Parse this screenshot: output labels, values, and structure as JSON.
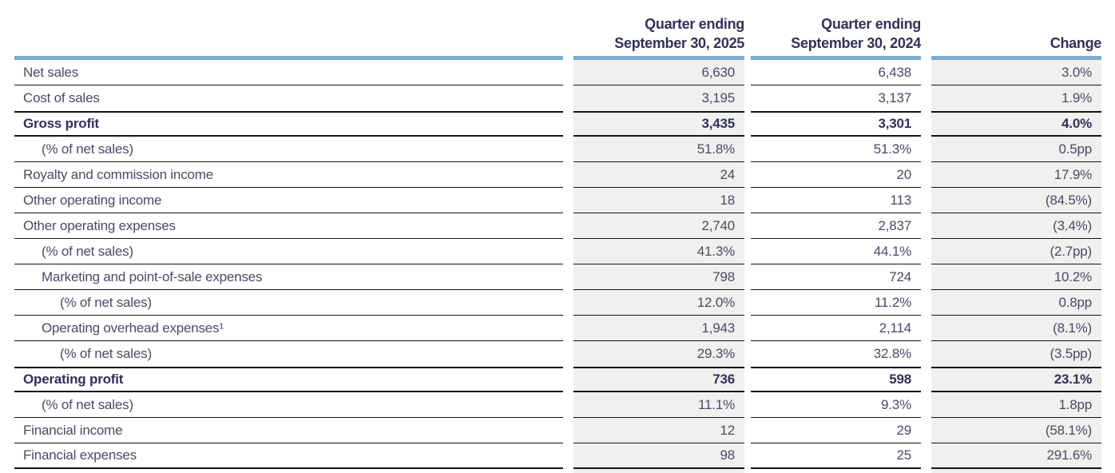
{
  "header": {
    "col_2025_line1": "Quarter ending",
    "col_2025_line2": "September 30, 2025",
    "col_2024_line1": "Quarter ending",
    "col_2024_line2": "September 30, 2024",
    "col_change": "Change"
  },
  "table": {
    "rows": [
      {
        "label": "Net sales",
        "indent": 0,
        "bold": false,
        "q2025": "6,630",
        "q2024": "6,438",
        "change": "3.0%"
      },
      {
        "label": "Cost of sales",
        "indent": 0,
        "bold": false,
        "q2025": "3,195",
        "q2024": "3,137",
        "change": "1.9%"
      },
      {
        "label": "Gross profit",
        "indent": 0,
        "bold": true,
        "q2025": "3,435",
        "q2024": "3,301",
        "change": "4.0%"
      },
      {
        "label": "(% of net sales)",
        "indent": 1,
        "bold": false,
        "q2025": "51.8%",
        "q2024": "51.3%",
        "change": "0.5pp"
      },
      {
        "label": "Royalty and commission income",
        "indent": 0,
        "bold": false,
        "q2025": "24",
        "q2024": "20",
        "change": "17.9%"
      },
      {
        "label": "Other operating income",
        "indent": 0,
        "bold": false,
        "q2025": "18",
        "q2024": "113",
        "change": "(84.5%)"
      },
      {
        "label": "Other operating expenses",
        "indent": 0,
        "bold": false,
        "q2025": "2,740",
        "q2024": "2,837",
        "change": "(3.4%)"
      },
      {
        "label": "(% of net sales)",
        "indent": 1,
        "bold": false,
        "q2025": "41.3%",
        "q2024": "44.1%",
        "change": "(2.7pp)"
      },
      {
        "label": "Marketing and point-of-sale expenses",
        "indent": 1,
        "bold": false,
        "q2025": "798",
        "q2024": "724",
        "change": "10.2%"
      },
      {
        "label": "(% of net sales)",
        "indent": 2,
        "bold": false,
        "q2025": "12.0%",
        "q2024": "11.2%",
        "change": "0.8pp"
      },
      {
        "label": "Operating overhead expenses¹",
        "indent": 1,
        "bold": false,
        "q2025": "1,943",
        "q2024": "2,114",
        "change": "(8.1%)"
      },
      {
        "label": "(% of net sales)",
        "indent": 2,
        "bold": false,
        "q2025": "29.3%",
        "q2024": "32.8%",
        "change": "(3.5pp)"
      },
      {
        "label": "Operating profit",
        "indent": 0,
        "bold": true,
        "q2025": "736",
        "q2024": "598",
        "change": "23.1%"
      },
      {
        "label": "(% of net sales)",
        "indent": 1,
        "bold": false,
        "q2025": "11.1%",
        "q2024": "9.3%",
        "change": "1.8pp"
      },
      {
        "label": "Financial income",
        "indent": 0,
        "bold": false,
        "q2025": "12",
        "q2024": "29",
        "change": "(58.1%)"
      },
      {
        "label": "Financial expenses",
        "indent": 0,
        "bold": false,
        "q2025": "98",
        "q2024": "25",
        "change": "291.6%"
      }
    ]
  },
  "colors": {
    "accent_blue": "#7aadce",
    "cell_gray": "#f0f0ee",
    "text_regular": "#4a4a66",
    "text_bold": "#31315a",
    "rule_black": "#141414"
  }
}
